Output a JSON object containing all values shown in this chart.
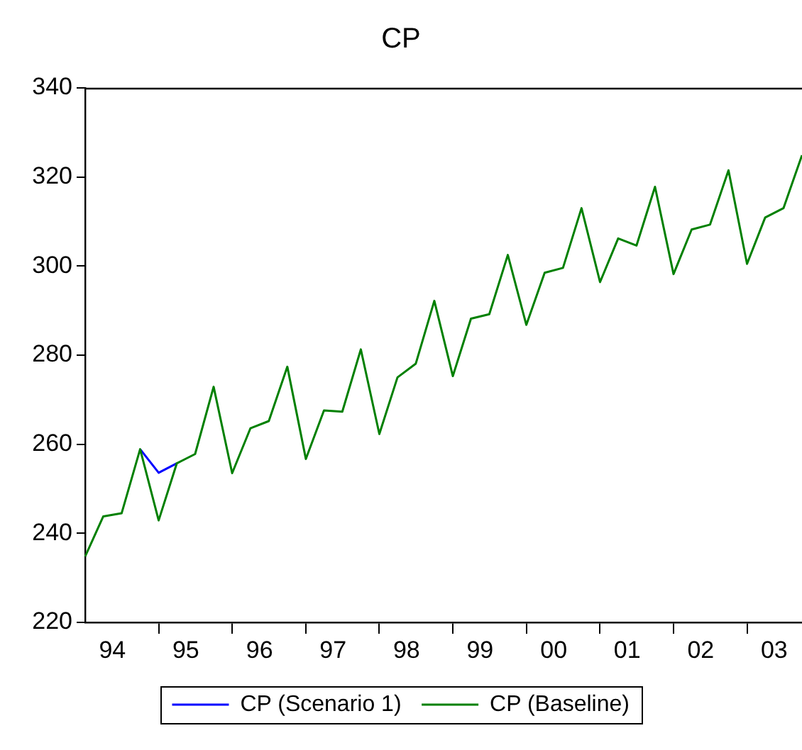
{
  "chart_data": {
    "type": "line",
    "title": "CP",
    "x": [
      "1994-01",
      "1994-04",
      "1994-07",
      "1994-10",
      "1995-01",
      "1995-04",
      "1995-07",
      "1995-10",
      "1996-01",
      "1996-04",
      "1996-07",
      "1996-10",
      "1997-01",
      "1997-04",
      "1997-07",
      "1997-10",
      "1998-01",
      "1998-04",
      "1998-07",
      "1998-10",
      "1999-01",
      "1999-04",
      "1999-07",
      "1999-10",
      "2000-01",
      "2000-04",
      "2000-07",
      "2000-10",
      "2001-01",
      "2001-04",
      "2001-07",
      "2001-10",
      "2002-01",
      "2002-04",
      "2002-07",
      "2002-10",
      "2003-01",
      "2003-04",
      "2003-07",
      "2003-10"
    ],
    "series": [
      {
        "name": "CP (Scenario 1)",
        "color": "#0000ff",
        "values": [
          null,
          null,
          null,
          258.9,
          253.6,
          255.7,
          null,
          null,
          null,
          null,
          null,
          null,
          null,
          null,
          null,
          null,
          null,
          null,
          null,
          null,
          null,
          null,
          null,
          null,
          null,
          null,
          null,
          null,
          null,
          null,
          null,
          null,
          null,
          null,
          null,
          null,
          null,
          null,
          null,
          null
        ]
      },
      {
        "name": "CP (Baseline)",
        "color": "#008000",
        "values": [
          234.8,
          243.8,
          244.5,
          258.9,
          242.9,
          255.7,
          257.8,
          272.9,
          253.5,
          263.6,
          265.2,
          277.4,
          256.7,
          267.6,
          267.3,
          281.3,
          262.3,
          275.0,
          278.1,
          292.2,
          275.3,
          288.2,
          289.2,
          302.5,
          286.8,
          298.5,
          299.6,
          313.0,
          296.4,
          306.2,
          304.6,
          317.8,
          298.2,
          308.2,
          309.3,
          321.5,
          300.5,
          310.9,
          313.0,
          324.9
        ]
      }
    ],
    "xlim": [
      "1994-01",
      "2003-10"
    ],
    "xticks": [
      {
        "value": "1994-05-16",
        "label": "94"
      },
      {
        "value": "1995-05-16",
        "label": "95"
      },
      {
        "value": "1996-05-16",
        "label": "96"
      },
      {
        "value": "1997-05-16",
        "label": "97"
      },
      {
        "value": "1998-05-16",
        "label": "98"
      },
      {
        "value": "1999-05-16",
        "label": "99"
      },
      {
        "value": "2000-05-16",
        "label": "00"
      },
      {
        "value": "2001-05-16",
        "label": "01"
      },
      {
        "value": "2002-05-16",
        "label": "02"
      },
      {
        "value": "2003-05-16",
        "label": "03"
      },
      {
        "value": "1995-01",
        "label": null
      },
      {
        "value": "1996-01",
        "label": null
      },
      {
        "value": "1997-01",
        "label": null
      },
      {
        "value": "1998-01",
        "label": null
      },
      {
        "value": "1999-01",
        "label": null
      },
      {
        "value": "2000-01",
        "label": null
      },
      {
        "value": "2001-01",
        "label": null
      },
      {
        "value": "2002-01",
        "label": null
      },
      {
        "value": "2003-01",
        "label": null
      }
    ],
    "ylim": [
      220,
      340
    ],
    "yticks": [
      220,
      240,
      260,
      280,
      300,
      320,
      340
    ],
    "grid": false,
    "legend": "bottom",
    "marker": "none",
    "line_style": "solid"
  }
}
